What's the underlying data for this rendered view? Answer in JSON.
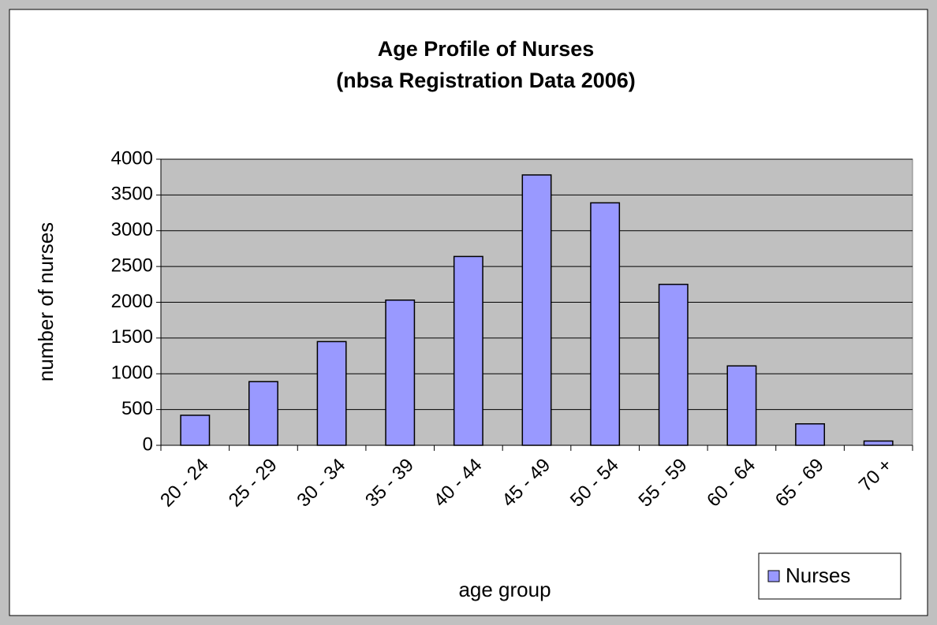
{
  "chart_data": {
    "type": "bar",
    "title": "Age Profile of Nurses",
    "subtitle": "(nbsa Registration Data 2006)",
    "x_label": "age group",
    "y_label": "number of nurses",
    "categories": [
      "20 - 24",
      "25 - 29",
      "30 - 34",
      "35 - 39",
      "40 - 44",
      "45 - 49",
      "50 - 54",
      "55 - 59",
      "60 - 64",
      "65 - 69",
      "70 +"
    ],
    "series": [
      {
        "name": "Nurses",
        "color": "#9999ff",
        "values": [
          420,
          890,
          1450,
          2030,
          2640,
          3780,
          3390,
          2250,
          1110,
          300,
          60
        ]
      }
    ],
    "ylim": [
      0,
      4000
    ],
    "yticks": [
      0,
      500,
      1000,
      1500,
      2000,
      2500,
      3000,
      3500,
      4000
    ],
    "grid": true,
    "legend": "bottom-right"
  }
}
